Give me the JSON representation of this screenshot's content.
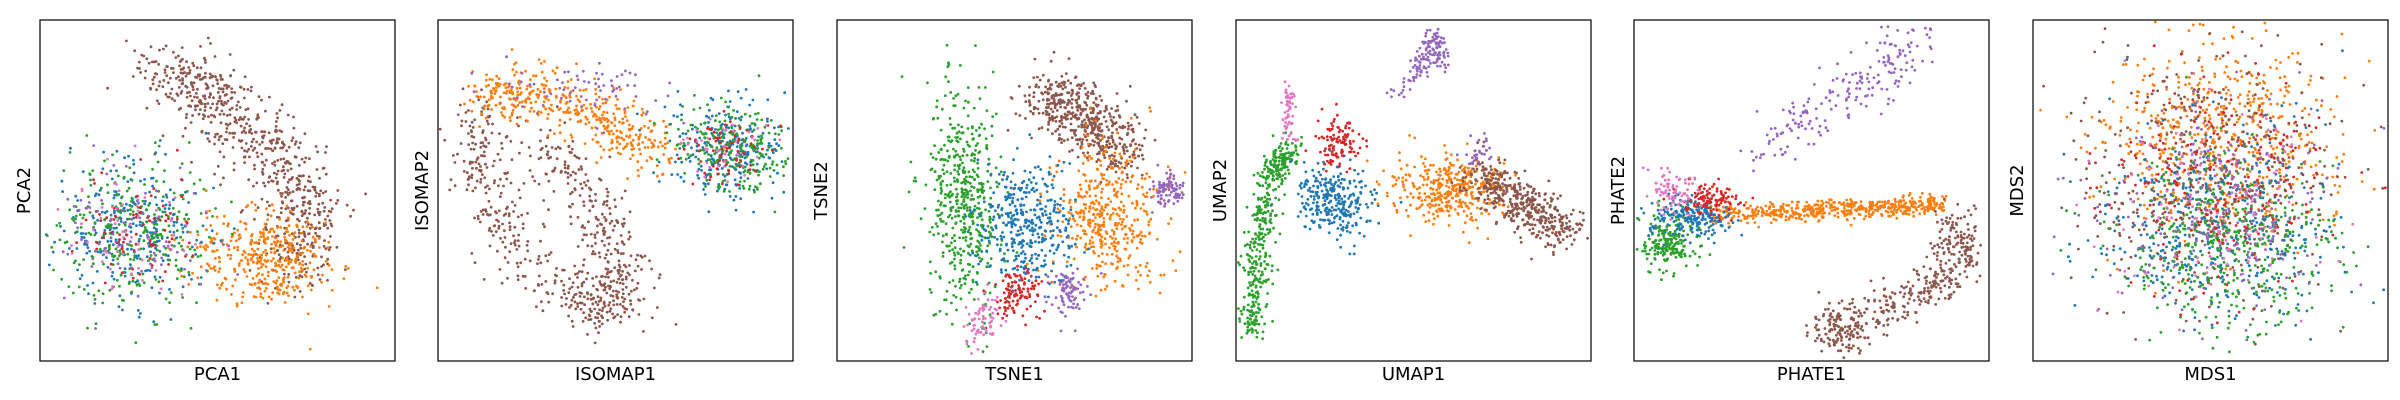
{
  "chart_data": [
    {
      "type": "scatter",
      "xlabel": "PCA1",
      "ylabel": "PCA2",
      "xticks": [],
      "yticks": [],
      "legend": "none",
      "grid": false
    },
    {
      "type": "scatter",
      "xlabel": "ISOMAP1",
      "ylabel": "ISOMAP2",
      "xticks": [],
      "yticks": [],
      "legend": "none",
      "grid": false
    },
    {
      "type": "scatter",
      "xlabel": "TSNE1",
      "ylabel": "TSNE2",
      "xticks": [],
      "yticks": [],
      "legend": "none",
      "grid": false
    },
    {
      "type": "scatter",
      "xlabel": "UMAP1",
      "ylabel": "UMAP2",
      "xticks": [],
      "yticks": [],
      "legend": "none",
      "grid": false
    },
    {
      "type": "scatter",
      "xlabel": "PHATE1",
      "ylabel": "PHATE2",
      "xticks": [],
      "yticks": [],
      "legend": "none",
      "grid": false
    },
    {
      "type": "scatter",
      "xlabel": "MDS1",
      "ylabel": "MDS2",
      "xticks": [],
      "yticks": [],
      "legend": "none",
      "grid": false
    }
  ],
  "colors": {
    "blue": "#1f77b4",
    "orange": "#ff7f0e",
    "green": "#2ca02c",
    "red": "#d62728",
    "purple": "#9467bd",
    "brown": "#8c564b",
    "pink": "#e377c2"
  }
}
